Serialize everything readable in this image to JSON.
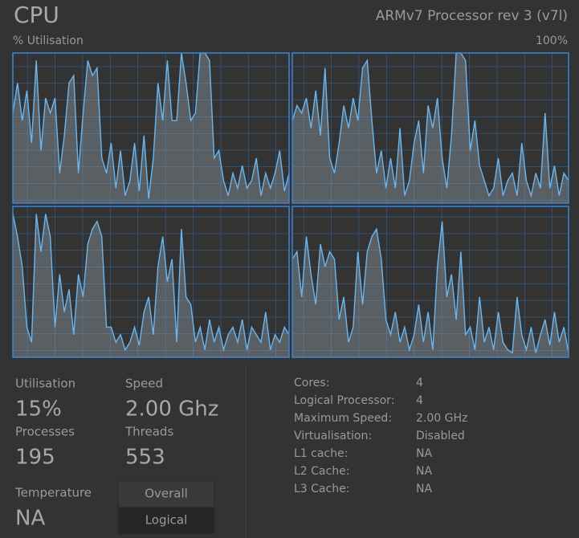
{
  "header": {
    "title": "CPU",
    "processor": "ARMv7 Processor rev 3 (v7l)",
    "y_label": "% Utilisation",
    "y_max_label": "100%"
  },
  "chart_data": [
    {
      "type": "line",
      "ylim": [
        0,
        100
      ],
      "color": "#6cb6ee",
      "values": [
        60,
        80,
        55,
        75,
        40,
        95,
        35,
        70,
        60,
        70,
        20,
        45,
        80,
        85,
        20,
        60,
        95,
        85,
        90,
        30,
        20,
        40,
        10,
        35,
        5,
        15,
        40,
        8,
        45,
        3,
        30,
        80,
        55,
        95,
        55,
        55,
        100,
        80,
        55,
        60,
        100,
        100,
        95,
        30,
        35,
        15,
        5,
        20,
        10,
        25,
        10,
        15,
        30,
        5,
        20,
        10,
        20,
        35,
        8,
        20
      ]
    },
    {
      "type": "line",
      "ylim": [
        0,
        100
      ],
      "color": "#6cb6ee",
      "values": [
        55,
        65,
        60,
        70,
        50,
        75,
        45,
        90,
        30,
        20,
        40,
        65,
        50,
        70,
        55,
        90,
        95,
        55,
        20,
        35,
        10,
        30,
        10,
        50,
        5,
        15,
        40,
        55,
        20,
        65,
        50,
        70,
        30,
        10,
        45,
        100,
        100,
        95,
        35,
        55,
        25,
        15,
        5,
        10,
        30,
        5,
        15,
        20,
        5,
        40,
        15,
        5,
        20,
        10,
        60,
        10,
        25,
        5,
        20,
        15
      ]
    },
    {
      "type": "line",
      "ylim": [
        0,
        100
      ],
      "color": "#6cb6ee",
      "values": [
        95,
        80,
        60,
        20,
        10,
        95,
        70,
        95,
        80,
        20,
        55,
        30,
        45,
        15,
        55,
        40,
        75,
        85,
        90,
        80,
        20,
        20,
        10,
        15,
        5,
        10,
        20,
        8,
        30,
        40,
        15,
        60,
        80,
        50,
        65,
        10,
        85,
        40,
        35,
        10,
        20,
        5,
        25,
        10,
        20,
        5,
        15,
        20,
        10,
        25,
        5,
        20,
        15,
        10,
        30,
        5,
        15,
        10,
        20,
        15
      ]
    },
    {
      "type": "line",
      "ylim": [
        0,
        100
      ],
      "color": "#6cb6ee",
      "values": [
        65,
        70,
        40,
        80,
        55,
        35,
        75,
        60,
        70,
        65,
        25,
        40,
        10,
        20,
        70,
        35,
        70,
        80,
        85,
        65,
        25,
        15,
        30,
        10,
        20,
        5,
        15,
        35,
        10,
        30,
        5,
        60,
        90,
        40,
        55,
        25,
        70,
        15,
        20,
        5,
        40,
        10,
        20,
        5,
        30,
        10,
        5,
        3,
        40,
        15,
        5,
        20,
        3,
        15,
        25,
        8,
        30,
        10,
        20,
        3
      ]
    }
  ],
  "stats": [
    {
      "label": "Utilisation",
      "value": "15%"
    },
    {
      "label": "Speed",
      "value": "2.00 Ghz"
    },
    {
      "label": "Processes",
      "value": "195"
    },
    {
      "label": "Threads",
      "value": "553"
    },
    {
      "label": "Temperature",
      "value": "NA"
    }
  ],
  "buttons": [
    "Overall",
    "Logical"
  ],
  "details": [
    [
      "Cores:",
      "4"
    ],
    [
      "Logical Processor:",
      "4"
    ],
    [
      "Maximum Speed:",
      "2.00 GHz"
    ],
    [
      "Virtualisation:",
      "Disabled"
    ],
    [
      "L1 cache:",
      "NA"
    ],
    [
      "L2 Cache:",
      "NA"
    ],
    [
      "L3 Cache:",
      "NA"
    ]
  ]
}
